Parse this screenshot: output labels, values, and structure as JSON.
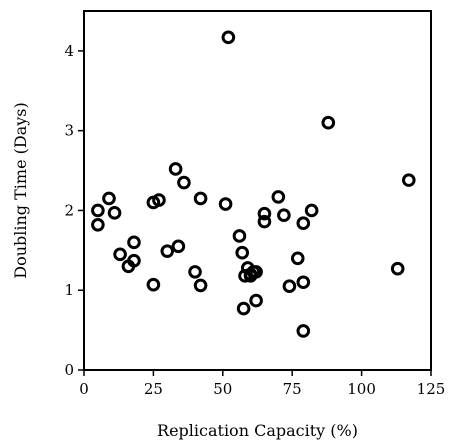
{
  "chart_data": {
    "type": "scatter",
    "xlabel": "Replication Capacity (%)",
    "ylabel": "Doubling Time (Days)",
    "xlim": [
      0,
      125
    ],
    "ylim": [
      0,
      4.5
    ],
    "xticks": [
      0,
      25,
      50,
      75,
      100,
      125
    ],
    "yticks": [
      0,
      1,
      2,
      3,
      4
    ],
    "grid": false,
    "series": [
      {
        "x": [
          5,
          5,
          9,
          11,
          13,
          16,
          18,
          18,
          25,
          25,
          27,
          30,
          33,
          34,
          36,
          40,
          42,
          42,
          51,
          52,
          56,
          57,
          57.5,
          58,
          59,
          60,
          60,
          61,
          62,
          62,
          65,
          65,
          70,
          72,
          74,
          77,
          79,
          79,
          79,
          82,
          88,
          113,
          117
        ],
        "y": [
          2.0,
          1.82,
          2.15,
          1.97,
          1.45,
          1.3,
          1.37,
          1.6,
          1.07,
          2.1,
          2.13,
          1.49,
          2.52,
          1.55,
          2.35,
          1.23,
          1.06,
          2.15,
          2.08,
          4.17,
          1.68,
          1.47,
          0.77,
          1.18,
          1.28,
          1.2,
          1.18,
          1.23,
          1.23,
          0.87,
          1.96,
          1.86,
          2.17,
          1.94,
          1.05,
          1.4,
          1.84,
          1.1,
          0.49,
          2.0,
          3.1,
          1.27,
          2.38
        ]
      }
    ]
  }
}
